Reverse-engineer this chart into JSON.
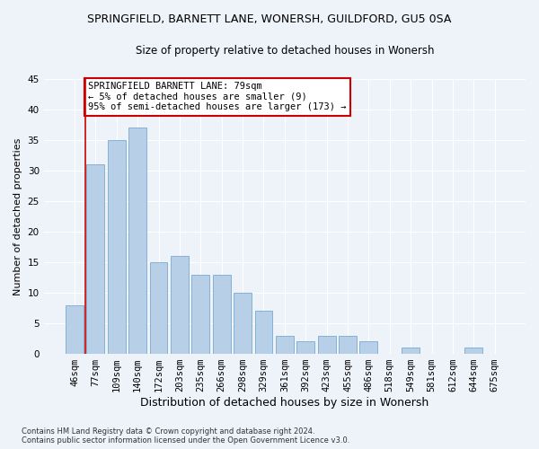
{
  "title1": "SPRINGFIELD, BARNETT LANE, WONERSH, GUILDFORD, GU5 0SA",
  "title2": "Size of property relative to detached houses in Wonersh",
  "xlabel": "Distribution of detached houses by size in Wonersh",
  "ylabel": "Number of detached properties",
  "categories": [
    "46sqm",
    "77sqm",
    "109sqm",
    "140sqm",
    "172sqm",
    "203sqm",
    "235sqm",
    "266sqm",
    "298sqm",
    "329sqm",
    "361sqm",
    "392sqm",
    "423sqm",
    "455sqm",
    "486sqm",
    "518sqm",
    "549sqm",
    "581sqm",
    "612sqm",
    "644sqm",
    "675sqm"
  ],
  "values": [
    8,
    31,
    35,
    37,
    15,
    16,
    13,
    13,
    10,
    7,
    3,
    2,
    3,
    3,
    2,
    0,
    1,
    0,
    0,
    1,
    0
  ],
  "bar_color": "#b8cfe8",
  "bar_edge_color": "#7aaad0",
  "annotation_text": "SPRINGFIELD BARNETT LANE: 79sqm\n← 5% of detached houses are smaller (9)\n95% of semi-detached houses are larger (173) →",
  "annotation_box_color": "#ffffff",
  "annotation_border_color": "#cc0000",
  "ylim": [
    0,
    45
  ],
  "yticks": [
    0,
    5,
    10,
    15,
    20,
    25,
    30,
    35,
    40,
    45
  ],
  "vline_color": "#cc0000",
  "vline_x": 0.5,
  "footnote": "Contains HM Land Registry data © Crown copyright and database right 2024.\nContains public sector information licensed under the Open Government Licence v3.0.",
  "bg_color": "#eef2f9",
  "grid_color": "#ffffff",
  "title1_fontsize": 9,
  "title2_fontsize": 8.5,
  "xlabel_fontsize": 9,
  "ylabel_fontsize": 8,
  "tick_fontsize": 7.5,
  "annot_fontsize": 7.5
}
